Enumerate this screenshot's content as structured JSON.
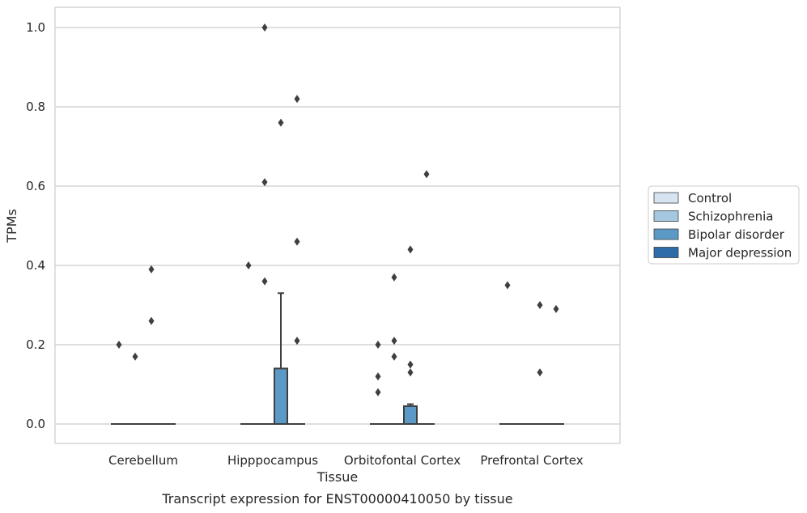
{
  "chart_data": {
    "type": "box",
    "title": "",
    "caption": "Transcript expression for ENST00000410050 by tissue",
    "xlabel": "Tissue",
    "ylabel": "TPMs",
    "ylim": [
      -0.05,
      1.05
    ],
    "yticks": [
      0.0,
      0.2,
      0.4,
      0.6,
      0.8,
      1.0
    ],
    "ytick_labels": [
      "0.0",
      "0.2",
      "0.4",
      "0.6",
      "0.8",
      "1.0"
    ],
    "grid": "horizontal",
    "legend_position": "right",
    "categories": [
      "Cerebellum",
      "Hipppocampus",
      "Orbitofontal Cortex",
      "Prefrontal Cortex"
    ],
    "series": [
      {
        "name": "Control",
        "color": "#d6e4f1",
        "boxes": [
          {
            "q1": 0,
            "median": 0,
            "q3": 0,
            "whisker_low": 0,
            "whisker_high": 0,
            "outliers": [
              0.2
            ]
          },
          {
            "q1": 0,
            "median": 0,
            "q3": 0,
            "whisker_low": 0,
            "whisker_high": 0,
            "outliers": [
              0.4
            ]
          },
          {
            "q1": 0,
            "median": 0,
            "q3": 0,
            "whisker_low": 0,
            "whisker_high": 0,
            "outliers": [
              0.2,
              0.12,
              0.08
            ]
          },
          {
            "q1": 0,
            "median": 0,
            "q3": 0,
            "whisker_low": 0,
            "whisker_high": 0,
            "outliers": [
              0.35
            ]
          }
        ]
      },
      {
        "name": "Schizophrenia",
        "color": "#a4c8e0",
        "boxes": [
          {
            "q1": 0,
            "median": 0,
            "q3": 0,
            "whisker_low": 0,
            "whisker_high": 0,
            "outliers": [
              0.17
            ]
          },
          {
            "q1": 0,
            "median": 0,
            "q3": 0,
            "whisker_low": 0,
            "whisker_high": 0,
            "outliers": [
              1.0,
              0.61,
              0.36
            ]
          },
          {
            "q1": 0,
            "median": 0,
            "q3": 0,
            "whisker_low": 0,
            "whisker_high": 0,
            "outliers": [
              0.37,
              0.21,
              0.17
            ]
          },
          {
            "q1": 0,
            "median": 0,
            "q3": 0,
            "whisker_low": 0,
            "whisker_high": 0,
            "outliers": []
          }
        ]
      },
      {
        "name": "Bipolar disorder",
        "color": "#5b9ac6",
        "boxes": [
          {
            "q1": 0,
            "median": 0,
            "q3": 0,
            "whisker_low": 0,
            "whisker_high": 0,
            "outliers": [
              0.39,
              0.26
            ]
          },
          {
            "q1": 0,
            "median": 0,
            "q3": 0.14,
            "whisker_low": 0,
            "whisker_high": 0.33,
            "outliers": [
              0.76
            ]
          },
          {
            "q1": 0,
            "median": 0,
            "q3": 0.045,
            "whisker_low": 0,
            "whisker_high": 0.05,
            "outliers": [
              0.44,
              0.15,
              0.13
            ]
          },
          {
            "q1": 0,
            "median": 0,
            "q3": 0,
            "whisker_low": 0,
            "whisker_high": 0,
            "outliers": [
              0.3,
              0.13
            ]
          }
        ]
      },
      {
        "name": "Major depression",
        "color": "#2d6ca7",
        "boxes": [
          {
            "q1": 0,
            "median": 0,
            "q3": 0,
            "whisker_low": 0,
            "whisker_high": 0,
            "outliers": []
          },
          {
            "q1": 0,
            "median": 0,
            "q3": 0,
            "whisker_low": 0,
            "whisker_high": 0,
            "outliers": [
              0.82,
              0.46,
              0.21
            ]
          },
          {
            "q1": 0,
            "median": 0,
            "q3": 0,
            "whisker_low": 0,
            "whisker_high": 0,
            "outliers": [
              0.63
            ]
          },
          {
            "q1": 0,
            "median": 0,
            "q3": 0,
            "whisker_low": 0,
            "whisker_high": 0,
            "outliers": [
              0.29
            ]
          }
        ]
      }
    ]
  }
}
